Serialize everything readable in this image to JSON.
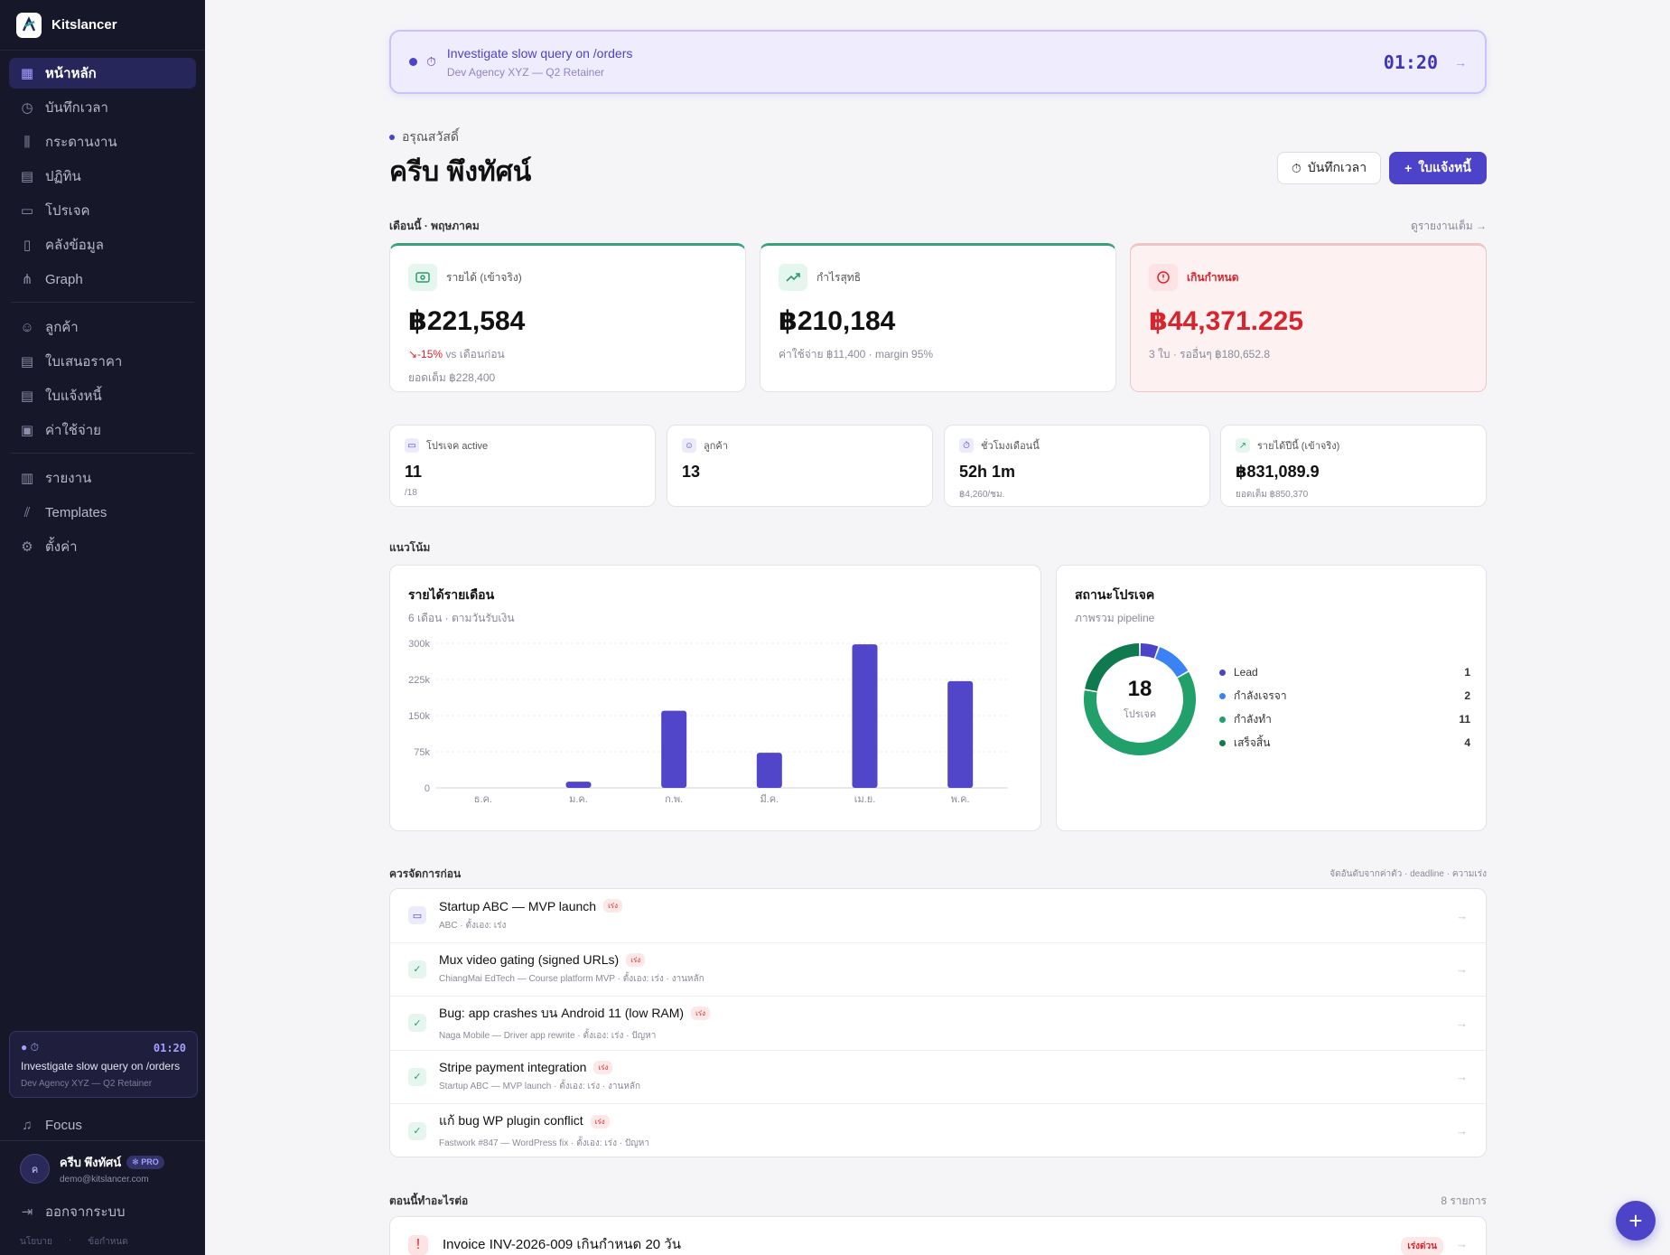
{
  "brand": {
    "name": "Kitslancer"
  },
  "sidebar": {
    "nav_main": [
      {
        "label": "หน้าหลัก",
        "icon": "dashboard-icon",
        "active": true
      },
      {
        "label": "บันทึกเวลา",
        "icon": "clock-icon"
      },
      {
        "label": "กระดานงาน",
        "icon": "kanban-icon"
      },
      {
        "label": "ปฏิทิน",
        "icon": "calendar-icon"
      },
      {
        "label": "โปรเจค",
        "icon": "folder-icon"
      },
      {
        "label": "คลังข้อมูล",
        "icon": "book-icon"
      },
      {
        "label": "Graph",
        "icon": "graph-icon"
      }
    ],
    "nav_business": [
      {
        "label": "ลูกค้า",
        "icon": "users-icon"
      },
      {
        "label": "ใบเสนอราคา",
        "icon": "quote-icon"
      },
      {
        "label": "ใบแจ้งหนี้",
        "icon": "invoice-icon"
      },
      {
        "label": "ค่าใช้จ่าย",
        "icon": "wallet-icon"
      }
    ],
    "nav_tools": [
      {
        "label": "รายงาน",
        "icon": "bar-chart-icon"
      },
      {
        "label": "Templates",
        "icon": "library-icon"
      },
      {
        "label": "ตั้งค่า",
        "icon": "gear-icon"
      }
    ],
    "timer": {
      "time": "01:20",
      "title": "Investigate slow query on /orders",
      "subtitle": "Dev Agency XYZ — Q2 Retainer"
    },
    "focus_label": "Focus",
    "user": {
      "initial": "ค",
      "name": "ครีบ พึงทัศน์",
      "badge": "PRO",
      "email": "demo@kitslancer.com"
    },
    "logout_label": "ออกจากระบบ",
    "footer": {
      "policy": "นโยบาย",
      "terms": "ข้อกำหนด"
    }
  },
  "banner": {
    "title": "Investigate slow query on /orders",
    "subtitle": "Dev Agency XYZ — Q2 Retainer",
    "time": "01:20"
  },
  "greeting": {
    "small": "อรุณสวัสดิ์",
    "name": "ครีบ พึงทัศน์"
  },
  "actions": {
    "log_time": "บันทึกเวลา",
    "new_invoice": "ใบแจ้งหนี้"
  },
  "month_section": {
    "label": "เดือนนี้ · พฤษภาคม",
    "link": "ดูรายงานเต็ม →"
  },
  "kpis": [
    {
      "label": "รายได้ (เข้าจริง)",
      "value": "฿221,584",
      "delta": "-15%",
      "delta_text": "vs เดือนก่อน",
      "sub2": "ยอดเต็ม ฿228,400",
      "icon": "cash-icon"
    },
    {
      "label": "กำไรสุทธิ",
      "value": "฿210,184",
      "sub": "ค่าใช้จ่าย ฿11,400 · margin 95%",
      "icon": "trending-up-icon"
    },
    {
      "label": "เกินกำหนด",
      "value": "฿44,371.225",
      "sub": "3 ใบ · รออื่นๆ ฿180,652.8",
      "icon": "alert-icon"
    }
  ],
  "stats": [
    {
      "label": "โปรเจค active",
      "value": "11",
      "sub": "/18",
      "icon": "folder-icon"
    },
    {
      "label": "ลูกค้า",
      "value": "13",
      "sub": "",
      "icon": "users-icon"
    },
    {
      "label": "ชั่วโมงเดือนนี้",
      "value": "52h 1m",
      "sub": "฿4,260/ชม.",
      "icon": "timer-icon"
    },
    {
      "label": "รายได้ปีนี้ (เข้าจริง)",
      "value": "฿831,089.9",
      "sub": "ยอดเต็ม ฿850,370",
      "icon": "trending-up-icon"
    }
  ],
  "trend_section": {
    "label": "แนวโน้ม"
  },
  "revenue_chart": {
    "title": "รายได้รายเดือน",
    "subtitle": "6 เดือน · ตามวันรับเงิน"
  },
  "chart_data": {
    "type": "bar",
    "categories": [
      "ธ.ค.",
      "ม.ค.",
      "ก.พ.",
      "มี.ค.",
      "เม.ย.",
      "พ.ค."
    ],
    "values": [
      0,
      13000,
      160000,
      73000,
      298000,
      221584
    ],
    "ylim": [
      0,
      300000
    ],
    "yticks": [
      0,
      75000,
      150000,
      225000,
      300000
    ],
    "ytick_labels": [
      "0",
      "75k",
      "150k",
      "225k",
      "300k"
    ],
    "color": "#5146c9",
    "grid": true
  },
  "status_card": {
    "title": "สถานะโปรเจค",
    "subtitle": "ภาพรวม pipeline",
    "total": "18",
    "total_label": "โปรเจค",
    "items": [
      {
        "name": "Lead",
        "count": 1,
        "color": "#4c43c9"
      },
      {
        "name": "กำลังเจรจา",
        "count": 2,
        "color": "#3b82f6"
      },
      {
        "name": "กำลังทำ",
        "count": 11,
        "color": "#22a06b"
      },
      {
        "name": "เสร็จสิ้น",
        "count": 4,
        "color": "#0f7a4f"
      }
    ]
  },
  "priority_section": {
    "label": "ควรจัดการก่อน",
    "note": "จัดอันดับจากค่าตัว · deadline · ความเร่ง"
  },
  "tasks": [
    {
      "title": "Startup ABC — MVP launch",
      "tag": "เร่ง",
      "sub": "ABC · ตั้งเอง: เร่ง",
      "type": "proj"
    },
    {
      "title": "Mux video gating (signed URLs)",
      "tag": "เร่ง",
      "sub": "ChiangMai EdTech — Course platform MVP · ตั้งเอง: เร่ง · งานหลัก",
      "type": "done"
    },
    {
      "title": "Bug: app crashes บน Android 11 (low RAM)",
      "tag": "เร่ง",
      "sub": "Naga Mobile — Driver app rewrite · ตั้งเอง: เร่ง · ปัญหา",
      "type": "done"
    },
    {
      "title": "Stripe payment integration",
      "tag": "เร่ง",
      "sub": "Startup ABC — MVP launch · ตั้งเอง: เร่ง · งานหลัก",
      "type": "done"
    },
    {
      "title": "แก้ bug WP plugin conflict",
      "tag": "เร่ง",
      "sub": "Fastwork #847 — WordPress fix · ตั้งเอง: เร่ง · ปัญหา",
      "type": "done"
    }
  ],
  "next_section": {
    "label": "ตอนนี้ทำอะไรต่อ",
    "count": "8 รายการ"
  },
  "next_item": {
    "title": "Invoice INV-2026-009 เกินกำหนด 20 วัน",
    "badge": "เร่งด่วน"
  }
}
